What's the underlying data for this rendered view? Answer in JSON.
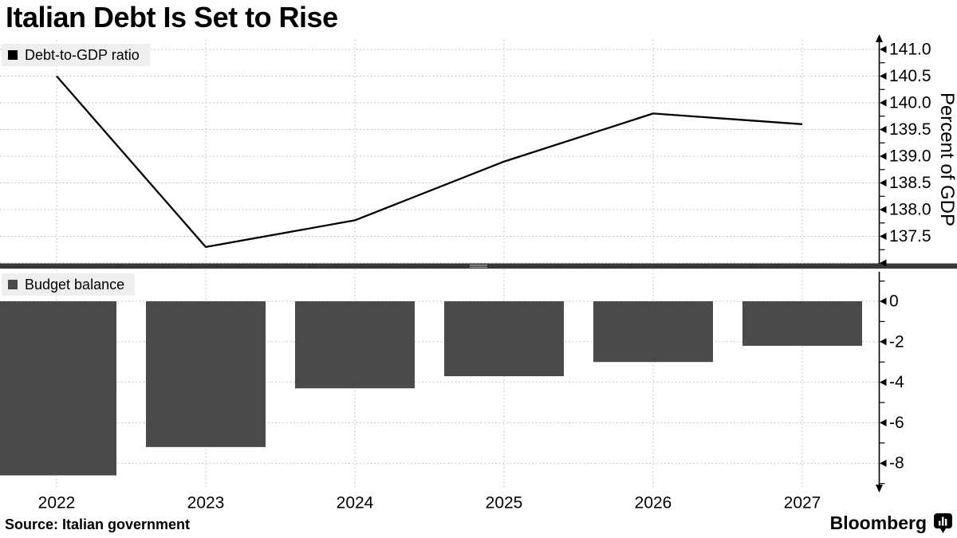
{
  "title": "Italian Debt Is Set to Rise",
  "source": "Source: Italian government",
  "brand": {
    "name": "Bloomberg",
    "icon": "bar-chart-bubble-icon"
  },
  "colors": {
    "background": "#ffffff",
    "text": "#000000",
    "bar": "#4a4a4a",
    "line": "#000000",
    "grid": "#c6c6c6",
    "legend_bg": "#efefef",
    "divider": "#383838",
    "divider_handle": "#9a9a9a",
    "axis": "#000000"
  },
  "x_axis": {
    "labels": [
      "2022",
      "2023",
      "2024",
      "2025",
      "2026",
      "2027"
    ]
  },
  "chart_data": [
    {
      "type": "line",
      "panel": "top",
      "legend": "Debt-to-GDP ratio",
      "categories": [
        "2022",
        "2023",
        "2024",
        "2025",
        "2026",
        "2027"
      ],
      "values": [
        140.5,
        137.3,
        137.8,
        138.9,
        139.8,
        139.6
      ],
      "ylabel": "Percent of GDP",
      "ylim": [
        137.0,
        141.2
      ],
      "ytick_values": [
        141.0,
        140.5,
        140.0,
        139.5,
        139.0,
        138.5,
        138.0,
        137.5
      ],
      "ytick_labels": [
        "141.0",
        "140.5",
        "140.0",
        "139.5",
        "139.0",
        "138.5",
        "138.0",
        "137.5"
      ],
      "ytick_minor_step": 0.25,
      "grid": true,
      "legend_position": "top-left",
      "axis_side": "right"
    },
    {
      "type": "bar",
      "panel": "bottom",
      "legend": "Budget balance",
      "categories": [
        "2022",
        "2023",
        "2024",
        "2025",
        "2026",
        "2027"
      ],
      "values": [
        -8.6,
        -7.2,
        -4.3,
        -3.7,
        -3.0,
        -2.2
      ],
      "ylabel": "",
      "ylim": [
        -9.3,
        1.1
      ],
      "ytick_values": [
        0,
        -2,
        -4,
        -6,
        -8
      ],
      "ytick_labels": [
        "0",
        "-2",
        "-4",
        "-6",
        "-8"
      ],
      "ytick_minor_step": 1,
      "grid": true,
      "legend_position": "top-left",
      "axis_side": "right"
    }
  ]
}
